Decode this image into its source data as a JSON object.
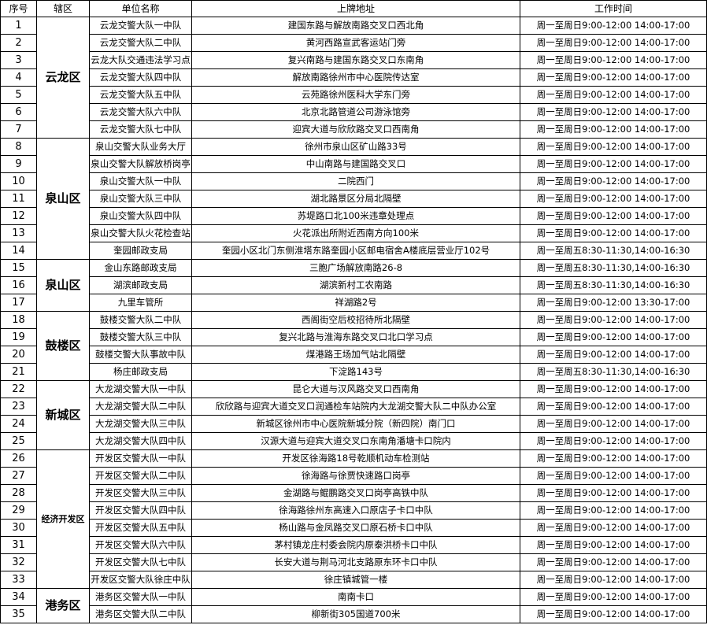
{
  "table": {
    "headers": [
      "序号",
      "辖区",
      "单位名称",
      "上牌地址",
      "工作时间"
    ],
    "groups": [
      {
        "district": "云龙区",
        "rows": [
          [
            "1",
            "云龙交警大队一中队",
            "建国东路与解放南路交叉口西北角",
            "周一至周日9:00-12:00  14:00-17:00"
          ],
          [
            "2",
            "云龙交警大队二中队",
            "黄河西路宣武客运站门旁",
            "周一至周日9:00-12:00  14:00-17:00"
          ],
          [
            "3",
            "云龙大队交通违法学习点",
            "复兴南路与建国东路交叉口东南角",
            "周一至周日9:00-12:00  14:00-17:00"
          ],
          [
            "4",
            "云龙交警大队四中队",
            "解放南路徐州市中心医院传达室",
            "周一至周日9:00-12:00  14:00-17:00"
          ],
          [
            "5",
            "云龙交警大队五中队",
            "云苑路徐州医科大学东门旁",
            "周一至周日9:00-12:00  14:00-17:00"
          ],
          [
            "6",
            "云龙交警大队六中队",
            "北京北路管道公司游泳馆旁",
            "周一至周日9:00-12:00  14:00-17:00"
          ],
          [
            "7",
            "云龙交警大队七中队",
            "迎宾大道与欣欣路交叉口西南角",
            "周一至周日9:00-12:00  14:00-17:00"
          ]
        ]
      },
      {
        "district": "泉山区",
        "rows": [
          [
            "8",
            "泉山交警大队业务大厅",
            "徐州市泉山区矿山路33号",
            "周一至周日9:00-12:00  14:00-17:00"
          ],
          [
            "9",
            "泉山交警大队解放桥岗亭",
            "中山南路与建国路交叉口",
            "周一至周日9:00-12:00  14:00-17:00"
          ],
          [
            "10",
            "泉山交警大队一中队",
            "二院西门",
            "周一至周日9:00-12:00  14:00-17:00"
          ],
          [
            "11",
            "泉山交警大队三中队",
            "湖北路景区分局北隔壁",
            "周一至周日9:00-12:00  14:00-17:00"
          ],
          [
            "12",
            "泉山交警大队四中队",
            "苏堤路口北100米违章处理点",
            "周一至周日9:00-12:00  14:00-17:00"
          ],
          [
            "13",
            "泉山交警大队火花检查站",
            "火花派出所附近西南方向100米",
            "周一至周日9:00-12:00  14:00-17:00"
          ],
          [
            "14",
            "奎园邮政支局",
            "奎园小区北门东侧淮塔东路奎园小区邮电宿舍A楼底层营业厅102号",
            "周一至周五8:30-11:30,14:00-16:30"
          ]
        ]
      },
      {
        "district": "泉山区",
        "rows": [
          [
            "15",
            "金山东路邮政支局",
            "三胞广场解放南路26-8",
            "周一至周五8:30-11:30,14:00-16:30"
          ],
          [
            "16",
            "湖滨邮政支局",
            "湖滨新村工农南路",
            "周一至周五8:30-11:30,14:00-16:30"
          ],
          [
            "17",
            "九里车管所",
            "祥湖路2号",
            "周一至周日9:00-12:00  13:30-17:00"
          ]
        ]
      },
      {
        "district": "鼓楼区",
        "rows": [
          [
            "18",
            "鼓楼交警大队二中队",
            "西阁街空后校招待所北隔壁",
            "周一至周日9:00-12:00  14:00-17:00"
          ],
          [
            "19",
            "鼓楼交警大队三中队",
            "复兴北路与淮海东路交叉口北口学习点",
            "周一至周日9:00-12:00  14:00-17:00"
          ],
          [
            "20",
            "鼓楼交警大队事故中队",
            "煤港路王场加气站北隔壁",
            "周一至周日9:00-12:00  14:00-17:00"
          ],
          [
            "21",
            "杨庄邮政支局",
            "下淀路143号",
            "周一至周五8:30-11:30,14:00-16:30"
          ]
        ]
      },
      {
        "district": "新城区",
        "rows": [
          [
            "22",
            "大龙湖交警大队一中队",
            "昆仑大道与汉风路交叉口西南角",
            "周一至周日9:00-12:00  14:00-17:00"
          ],
          [
            "23",
            "大龙湖交警大队二中队",
            "欣欣路与迎宾大道交叉口润通检车站院内大龙湖交警大队二中队办公室",
            "周一至周日9:00-12:00  14:00-17:00"
          ],
          [
            "24",
            "大龙湖交警大队三中队",
            "新城区徐州市中心医院新城分院（新四院）南门口",
            "周一至周日9:00-12:00  14:00-17:00"
          ],
          [
            "25",
            "大龙湖交警大队四中队",
            "汉源大道与迎宾大道交叉口东南角潘塘卡口院内",
            "周一至周日9:00-12:00  14:00-17:00"
          ]
        ]
      },
      {
        "district": "经济开发区",
        "rows": [
          [
            "26",
            "开发区交警大队一中队",
            "开发区徐海路18号乾顺机动车检测站",
            "周一至周日9:00-12:00  14:00-17:00"
          ],
          [
            "27",
            "开发区交警大队二中队",
            "徐海路与徐贾快速路口岗亭",
            "周一至周日9:00-12:00  14:00-17:00"
          ],
          [
            "28",
            "开发区交警大队三中队",
            "金湖路与鲲鹏路交叉口岗亭高铁中队",
            "周一至周日9:00-12:00  14:00-17:00"
          ],
          [
            "29",
            "开发区交警大队四中队",
            "徐海路徐州东高速入口原店子卡口中队",
            "周一至周日9:00-12:00  14:00-17:00"
          ],
          [
            "30",
            "开发区交警大队五中队",
            "杨山路与金凤路交叉口原石桥卡口中队",
            "周一至周日9:00-12:00  14:00-17:00"
          ],
          [
            "31",
            "开发区交警大队六中队",
            "茅村镇龙庄村委会院内原泰洪桥卡口中队",
            "周一至周日9:00-12:00  14:00-17:00"
          ],
          [
            "32",
            "开发区交警大队七中队",
            "长安大道与荆马河北支路原东环卡口中队",
            "周一至周日9:00-12:00  14:00-17:00"
          ],
          [
            "33",
            "开发区交警大队徐庄中队",
            "徐庄镇城管一楼",
            "周一至周日9:00-12:00  14:00-17:00"
          ]
        ]
      },
      {
        "district": "港务区",
        "rows": [
          [
            "34",
            "港务区交警大队一中队",
            "南南卡口",
            "周一至周日9:00-12:00  14:00-17:00"
          ],
          [
            "35",
            "港务区交警大队二中队",
            "柳新街305国道700米",
            "周一至周日9:00-12:00  14:00-17:00"
          ]
        ]
      }
    ]
  }
}
